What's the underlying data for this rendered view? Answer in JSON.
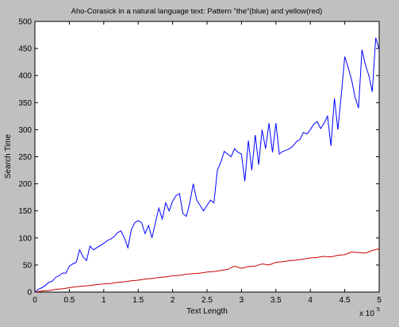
{
  "chart_data": {
    "type": "line",
    "title": "Aho-Corasick in a natural language text: Pattern \"the\"(blue) and yellow(red)",
    "xlabel": "Text Length",
    "ylabel": "Search Time",
    "x_exponent_base": "x 10",
    "x_exponent_power": "5",
    "xlim": [
      0,
      5
    ],
    "ylim": [
      0,
      500
    ],
    "x_ticks": [
      "0",
      "0.5",
      "1",
      "1.5",
      "2",
      "2.5",
      "3",
      "3.5",
      "4",
      "4.5",
      "5"
    ],
    "y_ticks": [
      "0",
      "50",
      "100",
      "150",
      "200",
      "250",
      "300",
      "350",
      "400",
      "450",
      "500"
    ],
    "grid": false,
    "colors": {
      "background": "#c0c0c0",
      "plot_area": "#ffffff",
      "blue": "#0000ff",
      "red": "#cc0000"
    },
    "series": [
      {
        "color": "blue",
        "x": [
          0.0,
          0.05,
          0.1,
          0.15,
          0.2,
          0.25,
          0.3,
          0.35,
          0.4,
          0.45,
          0.5,
          0.55,
          0.6,
          0.65,
          0.7,
          0.75,
          0.8,
          0.85,
          0.9,
          0.95,
          1.0,
          1.05,
          1.1,
          1.15,
          1.2,
          1.25,
          1.3,
          1.35,
          1.4,
          1.45,
          1.5,
          1.55,
          1.6,
          1.65,
          1.7,
          1.75,
          1.8,
          1.85,
          1.9,
          1.95,
          2.0,
          2.05,
          2.1,
          2.15,
          2.2,
          2.25,
          2.3,
          2.35,
          2.4,
          2.45,
          2.5,
          2.55,
          2.6,
          2.65,
          2.7,
          2.75,
          2.8,
          2.85,
          2.9,
          2.95,
          3.0,
          3.05,
          3.1,
          3.15,
          3.2,
          3.25,
          3.3,
          3.35,
          3.4,
          3.45,
          3.5,
          3.55,
          3.6,
          3.65,
          3.7,
          3.75,
          3.8,
          3.85,
          3.9,
          3.95,
          4.0,
          4.05,
          4.1,
          4.15,
          4.2,
          4.25,
          4.3,
          4.35,
          4.4,
          4.45,
          4.5,
          4.55,
          4.6,
          4.65,
          4.7,
          4.75,
          4.8,
          4.85,
          4.9,
          4.95,
          5.0
        ],
        "values": [
          0,
          5,
          8,
          12,
          18,
          20,
          27,
          30,
          35,
          35,
          48,
          52,
          55,
          78,
          65,
          58,
          85,
          78,
          82,
          86,
          90,
          95,
          98,
          102,
          110,
          113,
          100,
          82,
          115,
          128,
          132,
          128,
          108,
          123,
          100,
          128,
          155,
          135,
          165,
          150,
          168,
          178,
          182,
          145,
          140,
          165,
          200,
          170,
          160,
          150,
          160,
          170,
          165,
          225,
          240,
          260,
          255,
          250,
          265,
          258,
          255,
          205,
          280,
          225,
          290,
          235,
          300,
          265,
          312,
          258,
          312,
          255,
          260,
          262,
          265,
          270,
          278,
          282,
          295,
          292,
          300,
          310,
          315,
          302,
          312,
          325,
          270,
          358,
          300,
          365,
          435,
          415,
          392,
          360,
          340,
          448,
          420,
          400,
          370,
          470,
          448
        ]
      },
      {
        "color": "red",
        "x": [
          0.0,
          0.1,
          0.2,
          0.3,
          0.4,
          0.5,
          0.6,
          0.7,
          0.8,
          0.9,
          1.0,
          1.1,
          1.2,
          1.3,
          1.4,
          1.5,
          1.6,
          1.7,
          1.8,
          1.9,
          2.0,
          2.1,
          2.2,
          2.3,
          2.4,
          2.5,
          2.6,
          2.7,
          2.8,
          2.9,
          3.0,
          3.1,
          3.2,
          3.3,
          3.4,
          3.5,
          3.6,
          3.7,
          3.8,
          3.9,
          4.0,
          4.1,
          4.2,
          4.3,
          4.4,
          4.5,
          4.6,
          4.7,
          4.8,
          4.9,
          5.0
        ],
        "values": [
          0,
          2,
          3,
          5,
          6,
          8,
          10,
          11,
          12,
          14,
          15,
          16,
          18,
          19,
          21,
          22,
          24,
          25,
          27,
          28,
          30,
          31,
          33,
          34,
          35,
          37,
          38,
          40,
          42,
          48,
          44,
          47,
          48,
          52,
          50,
          55,
          56,
          58,
          59,
          61,
          63,
          64,
          66,
          65,
          68,
          69,
          74,
          73,
          72,
          77,
          80
        ]
      }
    ]
  }
}
